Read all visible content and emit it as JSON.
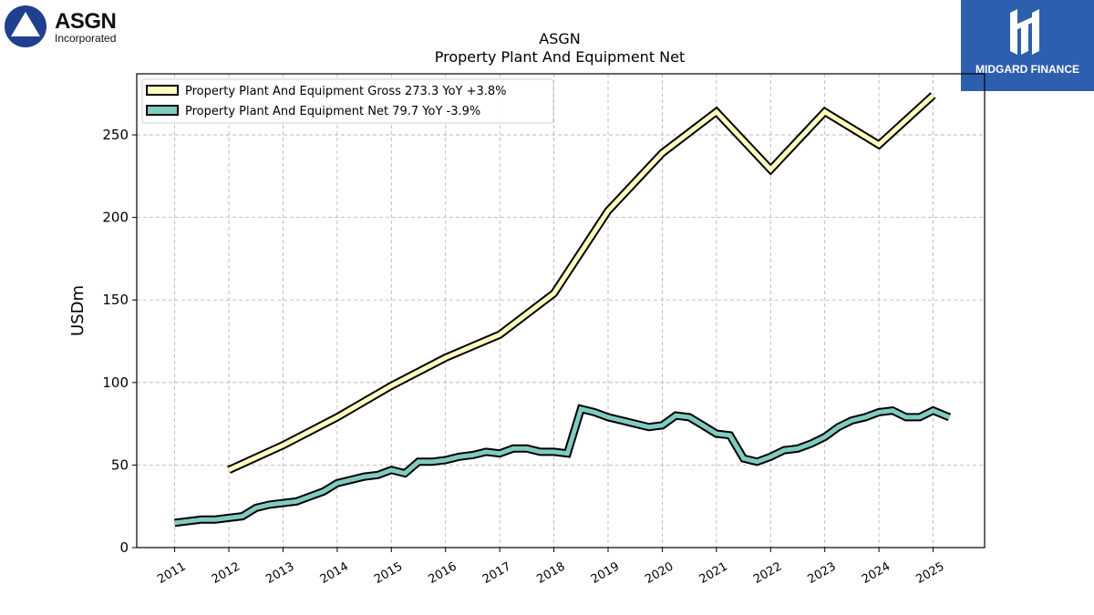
{
  "brand": {
    "name": "ASGN",
    "sub": "Incorporated",
    "watermark": "MIDGARD FINANCE"
  },
  "colors": {
    "gross": "#ffffc0",
    "net": "#80cbc0",
    "outline": "#000000",
    "grid": "#b0b0b0"
  },
  "chart_data": {
    "type": "line",
    "title": "ASGN",
    "subtitle": "Property Plant And Equipment Net",
    "ylabel": "USDm",
    "xlabel": "",
    "ylim": [
      0,
      287
    ],
    "xlim": [
      2010.3,
      2025.95
    ],
    "yticks": [
      0,
      50,
      100,
      150,
      200,
      250
    ],
    "xticks": [
      "2011",
      "2012",
      "2013",
      "2014",
      "2015",
      "2016",
      "2017",
      "2018",
      "2019",
      "2020",
      "2021",
      "2022",
      "2023",
      "2024",
      "2025"
    ],
    "grid": true,
    "legend_position": "top-left",
    "series": [
      {
        "name": "Property Plant And Equipment Gross",
        "legend": "Property Plant And Equipment Gross  273.3 YoY +3.8%",
        "x": [
          2012.0,
          2013.0,
          2014.0,
          2015.0,
          2016.0,
          2017.0,
          2018.0,
          2019.0,
          2020.0,
          2021.0,
          2022.0,
          2023.0,
          2024.0,
          2025.0
        ],
        "y": [
          47,
          62,
          79,
          98,
          115,
          129,
          154,
          204,
          239,
          264,
          229,
          264,
          244,
          274
        ]
      },
      {
        "name": "Property Plant And Equipment Net",
        "legend": "Property Plant And Equipment Net  79.7 YoY -3.9%",
        "x": [
          2011.0,
          2011.5,
          2011.75,
          2012.0,
          2012.25,
          2012.5,
          2012.75,
          2013.0,
          2013.25,
          2013.5,
          2013.75,
          2014.0,
          2014.25,
          2014.5,
          2014.75,
          2015.0,
          2015.25,
          2015.5,
          2015.75,
          2016.0,
          2016.25,
          2016.5,
          2016.75,
          2017.0,
          2017.25,
          2017.5,
          2017.75,
          2018.0,
          2018.25,
          2018.5,
          2018.75,
          2019.0,
          2019.25,
          2019.5,
          2019.75,
          2020.0,
          2020.25,
          2020.5,
          2020.75,
          2021.0,
          2021.25,
          2021.5,
          2021.75,
          2022.0,
          2022.25,
          2022.5,
          2022.75,
          2023.0,
          2023.25,
          2023.5,
          2023.75,
          2024.0,
          2024.25,
          2024.5,
          2024.75,
          2025.0,
          2025.3
        ],
        "y": [
          15,
          17,
          17,
          18,
          19,
          24,
          26,
          27,
          28,
          31,
          34,
          39,
          41,
          43,
          44,
          47,
          45,
          52,
          52,
          53,
          55,
          56,
          58,
          57,
          60,
          60,
          58,
          58,
          57,
          84,
          82,
          79,
          77,
          75,
          73,
          74,
          80,
          79,
          74,
          69,
          68,
          54,
          52,
          55,
          59,
          60,
          63,
          67,
          73,
          77,
          79,
          82,
          83,
          79,
          79,
          83,
          79
        ]
      }
    ]
  }
}
